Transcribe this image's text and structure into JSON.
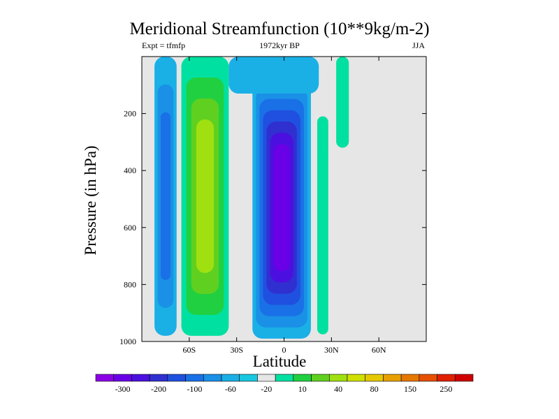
{
  "chart_data": {
    "type": "contour",
    "title": "Meridional Streamfunction (10**9kg/m-2)",
    "subtitle_left": "Expt = tfmfp",
    "subtitle_center": "1972kyr BP",
    "subtitle_right": "JJA",
    "xlabel": "Latitude",
    "ylabel": "Pressure (in hPa)",
    "xlim": [
      -90,
      90
    ],
    "ylim": [
      1000,
      0
    ],
    "x_ticks": [
      {
        "value": -60,
        "label": "60S"
      },
      {
        "value": -30,
        "label": "30S"
      },
      {
        "value": 0,
        "label": "0"
      },
      {
        "value": 30,
        "label": "30N"
      },
      {
        "value": 60,
        "label": "60N"
      }
    ],
    "y_ticks": [
      {
        "value": 200,
        "label": "200"
      },
      {
        "value": 400,
        "label": "400"
      },
      {
        "value": 600,
        "label": "600"
      },
      {
        "value": 800,
        "label": "800"
      },
      {
        "value": 1000,
        "label": "1000"
      }
    ],
    "colorbar": {
      "colors": [
        "#8b00e6",
        "#6a00e6",
        "#4b10e0",
        "#3030d0",
        "#2050e0",
        "#1a70e6",
        "#1a90e6",
        "#1ab0e6",
        "#18c8e0",
        "#e6e6e6",
        "#00e0a0",
        "#20d040",
        "#60d020",
        "#a0e010",
        "#d0e000",
        "#e6c800",
        "#e6a000",
        "#e67800",
        "#e65000",
        "#e02000",
        "#d00000"
      ],
      "labels": [
        {
          "boundary": 1,
          "text": "-300"
        },
        {
          "boundary": 3,
          "text": "-200"
        },
        {
          "boundary": 5,
          "text": "-100"
        },
        {
          "boundary": 7,
          "text": "-60"
        },
        {
          "boundary": 9,
          "text": "-20"
        },
        {
          "boundary": 11,
          "text": "10"
        },
        {
          "boundary": 13,
          "text": "40"
        },
        {
          "boundary": 15,
          "text": "80"
        },
        {
          "boundary": 17,
          "text": "150"
        },
        {
          "boundary": 19,
          "text": "250"
        }
      ]
    },
    "cells": [
      {
        "name": "southern-polar-cell",
        "lat_range": [
          -82,
          -68
        ],
        "p_range": [
          0,
          980
        ],
        "levels": [
          "#1ab0e6",
          "#1a90e6",
          "#1a70e6"
        ]
      },
      {
        "name": "southern-ferrel-cell",
        "lat_range": [
          -65,
          -35
        ],
        "p_range": [
          0,
          980
        ],
        "levels": [
          "#00e0a0",
          "#20d040",
          "#60d020",
          "#a0e010"
        ]
      },
      {
        "name": "hadley-cell",
        "lat_range": [
          -20,
          17
        ],
        "p_range": [
          70,
          990
        ],
        "levels": [
          "#1ab0e6",
          "#1a90e6",
          "#1a70e6",
          "#2050e0",
          "#3030d0",
          "#4b10e0",
          "#6a00e6"
        ]
      },
      {
        "name": "northern-positive-band",
        "lat_range": [
          21,
          28
        ],
        "p_range": [
          210,
          975
        ],
        "levels": [
          "#00e0a0"
        ]
      },
      {
        "name": "stratospheric-negative-band",
        "lat_range": [
          -35,
          22
        ],
        "p_range": [
          0,
          130
        ],
        "levels": [
          "#1ab0e6"
        ]
      },
      {
        "name": "upper-narrow-bands",
        "lat_range": [
          33,
          41
        ],
        "p_range": [
          0,
          320
        ],
        "levels": [
          "#00e0a0"
        ]
      }
    ]
  }
}
